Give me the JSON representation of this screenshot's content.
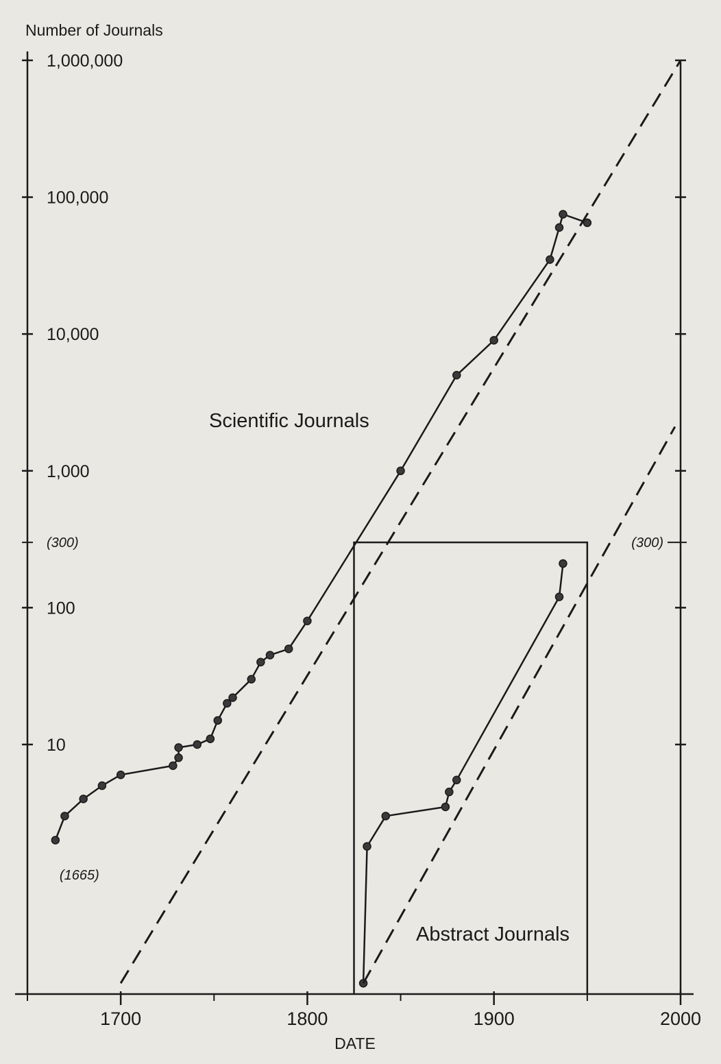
{
  "chart_data": {
    "type": "line",
    "ylabel": "Number of Journals",
    "xlabel": "DATE",
    "y_scale": "log",
    "xlim": [
      1650,
      2000
    ],
    "ylim": [
      0.15,
      1000000
    ],
    "x_ticks": [
      1700,
      1800,
      1900,
      2000
    ],
    "x_tick_labels": [
      "1700",
      "1800",
      "1900",
      "2000"
    ],
    "y_ticks": [
      10,
      100,
      1000,
      10000,
      100000,
      1000000
    ],
    "y_tick_labels": [
      "10",
      "100",
      "1,000",
      "10,000",
      "100,000",
      "1,000,000"
    ],
    "grid": false,
    "legend": "none",
    "annotations": [
      {
        "text": "(1665)",
        "x": 1665,
        "y": 1.6
      },
      {
        "text": "(300)",
        "x": 1650,
        "y": 300
      },
      {
        "text": "(300)",
        "x": 2000,
        "y": 300
      }
    ],
    "inset_box": {
      "x": [
        1825,
        1950
      ],
      "y": [
        0.15,
        300
      ]
    },
    "series": [
      {
        "name": "Scientific Journals",
        "style": "solid",
        "x": [
          1665,
          1670,
          1680,
          1690,
          1700,
          1728,
          1731,
          1731,
          1741,
          1748,
          1752,
          1757,
          1760,
          1770,
          1775,
          1780,
          1790,
          1800,
          1850,
          1880,
          1900,
          1930,
          1935,
          1937,
          1950
        ],
        "y": [
          2,
          3,
          4,
          5,
          6,
          7,
          8,
          9.5,
          10,
          11,
          15,
          20,
          22,
          30,
          40,
          45,
          50,
          80,
          1000,
          5000,
          9000,
          35000,
          60000,
          75000,
          65000
        ]
      },
      {
        "name": "Scientific Journals trend",
        "style": "dashed",
        "x": [
          1700,
          2000
        ],
        "y": [
          0.18,
          1000000
        ]
      },
      {
        "name": "Abstract Journals",
        "style": "solid",
        "x": [
          1830,
          1832,
          1842,
          1874,
          1876,
          1880,
          1935,
          1937
        ],
        "y": [
          0.18,
          1.8,
          3.0,
          3.5,
          4.5,
          5.5,
          120,
          210
        ]
      },
      {
        "name": "Abstract Journals trend",
        "style": "dashed",
        "x": [
          1830,
          1997
        ],
        "y": [
          0.18,
          2100
        ]
      }
    ],
    "series_labels": [
      {
        "text": "Scientific Journals",
        "x": 1775,
        "y": 5000
      },
      {
        "text": "Abstract Journals",
        "x": 1890,
        "y": 1.7
      }
    ]
  }
}
